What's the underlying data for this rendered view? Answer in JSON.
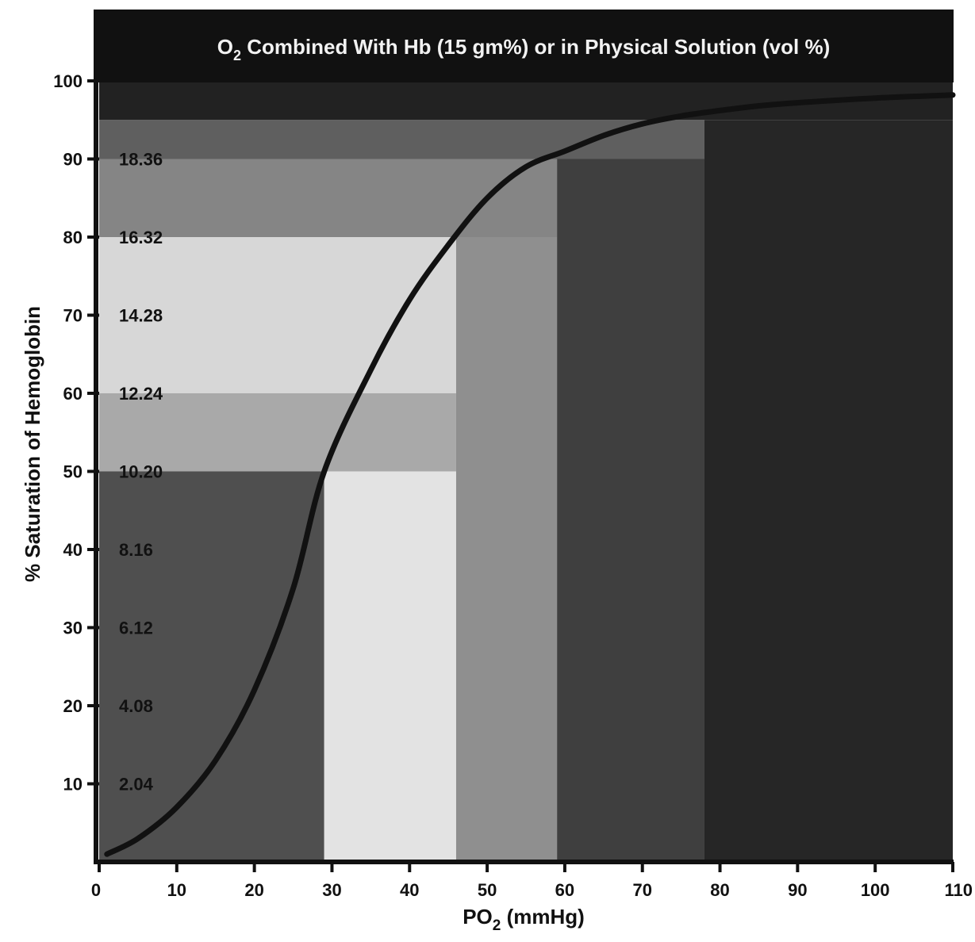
{
  "chart_data": {
    "type": "line",
    "title": {
      "o": "O",
      "sub": "2",
      "rest": " Combined With Hb (15 gm%) or in Physical Solution (vol %)"
    },
    "xlabel": {
      "main": "PO",
      "sub": "2",
      "rest": " (mmHg)"
    },
    "ylabel": "% Saturation of Hemoglobin",
    "xlim": [
      0,
      110
    ],
    "ylim": [
      0,
      100
    ],
    "x_ticks": [
      {
        "value": 0,
        "label": "0"
      },
      {
        "value": 10,
        "label": "10"
      },
      {
        "value": 20,
        "label": "20"
      },
      {
        "value": 30,
        "label": "30"
      },
      {
        "value": 40,
        "label": "40"
      },
      {
        "value": 50,
        "label": "50"
      },
      {
        "value": 60,
        "label": "60"
      },
      {
        "value": 70,
        "label": "70"
      },
      {
        "value": 80,
        "label": "80"
      },
      {
        "value": 90,
        "label": "90"
      },
      {
        "value": 100,
        "label": "100"
      },
      {
        "value": 110,
        "label": "110"
      }
    ],
    "y_ticks": [
      {
        "value": 10,
        "label": "10"
      },
      {
        "value": 20,
        "label": "20"
      },
      {
        "value": 30,
        "label": "30"
      },
      {
        "value": 40,
        "label": "40"
      },
      {
        "value": 50,
        "label": "50"
      },
      {
        "value": 60,
        "label": "60"
      },
      {
        "value": 70,
        "label": "70"
      },
      {
        "value": 80,
        "label": "80"
      },
      {
        "value": 90,
        "label": "90"
      },
      {
        "value": 100,
        "label": "100"
      }
    ],
    "o2_content_labels": [
      {
        "y": 10,
        "label": "2.04"
      },
      {
        "y": 20,
        "label": "4.08"
      },
      {
        "y": 30,
        "label": "6.12"
      },
      {
        "y": 40,
        "label": "8.16"
      },
      {
        "y": 50,
        "label": "10.20"
      },
      {
        "y": 60,
        "label": "12.24"
      },
      {
        "y": 70,
        "label": "14.28"
      },
      {
        "y": 80,
        "label": "16.32"
      },
      {
        "y": 90,
        "label": "18.36"
      }
    ],
    "series": [
      {
        "x": [
          1,
          5,
          10,
          15,
          20,
          25,
          29,
          35,
          40,
          45,
          50,
          55,
          60,
          65,
          70,
          75,
          80,
          85,
          90,
          100,
          110
        ],
        "y": [
          1,
          3,
          7,
          13,
          22,
          35,
          50,
          63,
          72,
          79,
          85,
          89,
          91,
          93,
          94.5,
          95.5,
          96.2,
          96.8,
          97.2,
          97.8,
          98.2
        ]
      }
    ],
    "background_zones": [
      {
        "x0": 0,
        "x1": 29,
        "y0": 0,
        "y1": 50,
        "color": "#4f4f4f"
      },
      {
        "x0": 0,
        "x1": 46,
        "y0": 50,
        "y1": 60,
        "color": "#a9a9a9"
      },
      {
        "x0": 0,
        "x1": 46,
        "y0": 60,
        "y1": 80,
        "color": "#d7d7d7"
      },
      {
        "x0": 0,
        "x1": 59,
        "y0": 80,
        "y1": 90,
        "color": "#858585"
      },
      {
        "x0": 0,
        "x1": 78,
        "y0": 90,
        "y1": 95,
        "color": "#5f5f5f"
      },
      {
        "x0": 29,
        "x1": 46,
        "y0": 0,
        "y1": 50,
        "color": "#e3e3e3"
      },
      {
        "x0": 46,
        "x1": 59,
        "y0": 0,
        "y1": 80,
        "color": "#8f8f8f"
      },
      {
        "x0": 59,
        "x1": 78,
        "y0": 0,
        "y1": 90,
        "color": "#3f3f3f"
      },
      {
        "x0": 78,
        "x1": 110,
        "y0": 0,
        "y1": 95,
        "color": "#262626"
      },
      {
        "x0": 0,
        "x1": 110,
        "y0": 95,
        "y1": 100,
        "color": "#222222"
      }
    ],
    "grid": false,
    "colors": {
      "curve": "#111111",
      "title_band": "#111111",
      "title_text": "#f2f2f2",
      "axis": "#111111"
    }
  }
}
